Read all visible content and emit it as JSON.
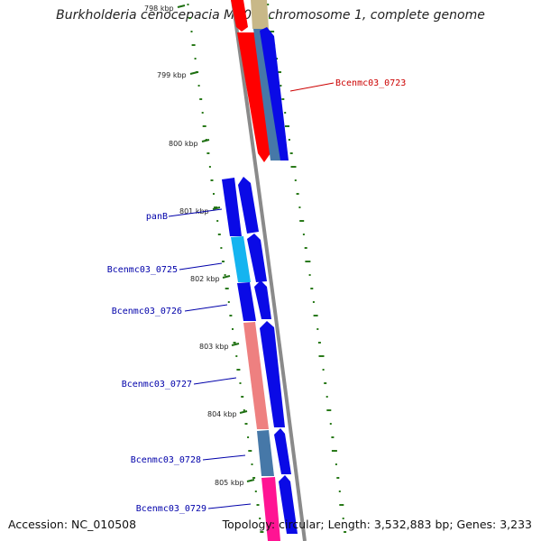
{
  "title": "Burkholderia cenocepacia MC0-3 chromosome 1, complete genome",
  "accession": "Accession: NC_010508",
  "summary": "Topology: circular; Length: 3,532,883 bp; Genes: 3,233",
  "ticks": [
    "798 kbp",
    "799 kbp",
    "800 kbp",
    "801 kbp",
    "802 kbp",
    "803 kbp",
    "804 kbp",
    "805 kbp"
  ],
  "genes": [
    {
      "label": "Bcenmc03_0723",
      "color": "#cc0000"
    },
    {
      "label": "panB",
      "color": "#0000aa"
    },
    {
      "label": "Bcenmc03_0725",
      "color": "#0000aa"
    },
    {
      "label": "Bcenmc03_0726",
      "color": "#0000aa"
    },
    {
      "label": "Bcenmc03_0727",
      "color": "#0000aa"
    },
    {
      "label": "Bcenmc03_0728",
      "color": "#0000aa"
    },
    {
      "label": "Bcenmc03_0729",
      "color": "#0000aa"
    }
  ],
  "colors": {
    "backbone": "#8a8a8a",
    "gc_dots": "#2a7a1a",
    "feature_blue": "#0a0ae6",
    "feature_red": "#ff0000",
    "feature_cyan": "#14b4f0",
    "feature_pink": "#ee8080",
    "feature_steel": "#4678a8",
    "feature_magenta": "#ff1493",
    "feature_tan": "#c8b888"
  }
}
